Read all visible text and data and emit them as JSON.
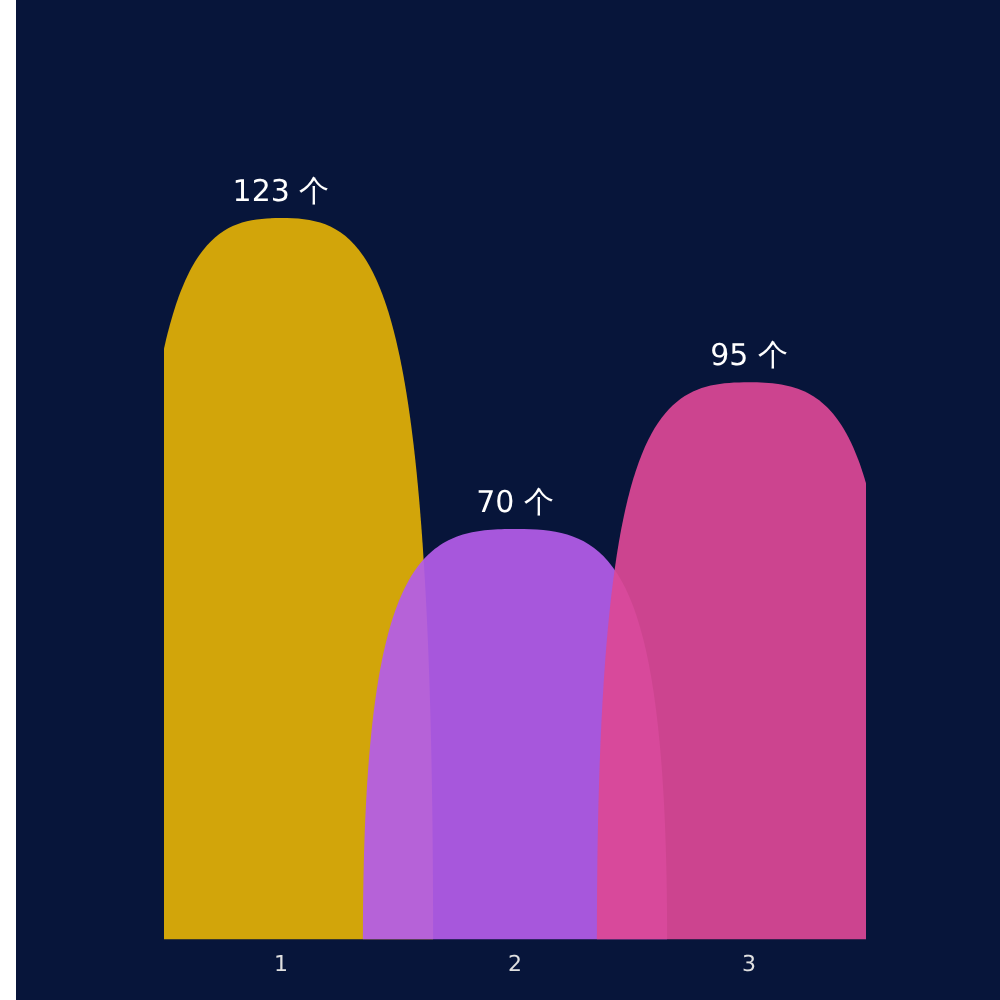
{
  "chart_data": {
    "type": "bar",
    "categories": [
      "1",
      "2",
      "3"
    ],
    "values": [
      123,
      70,
      95
    ],
    "colors": [
      "#e2b006",
      "#b45de8",
      "#dc4896"
    ],
    "value_labels": [
      "123 个",
      "70 个",
      "95 个"
    ],
    "grid": false,
    "legend": false
  }
}
